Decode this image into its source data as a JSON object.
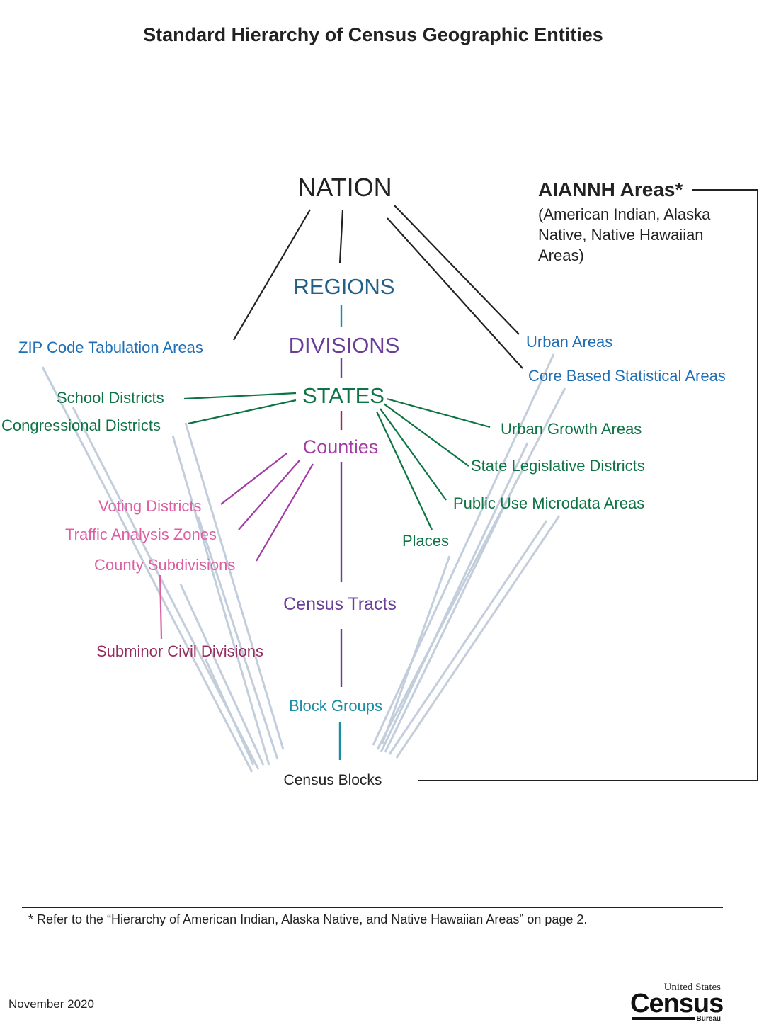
{
  "title": "Standard Hierarchy of Census Geographic Entities",
  "colors": {
    "black": "#222222",
    "blue": "#1f6fb5",
    "darkblue": "#245f87",
    "purple": "#6a3d9a",
    "green": "#0e7445",
    "magenta": "#a33ba5",
    "pink": "#dc5fa2",
    "wine": "#962b5e",
    "teal": "#1a8ea3",
    "lightblue": "#c3cedc"
  },
  "nodes": {
    "nation": "NATION",
    "regions": "REGIONS",
    "divisions": "DIVISIONS",
    "states": "STATES",
    "counties": "Counties",
    "census_tracts": "Census Tracts",
    "block_groups": "Block Groups",
    "census_blocks": "Census Blocks",
    "zcta": "ZIP Code Tabulation Areas",
    "school_districts": "School Districts",
    "congressional_districts": "Congressional Districts",
    "voting_districts": "Voting Districts",
    "traffic_analysis_zones": "Traffic Analysis Zones",
    "county_subdivisions": "County Subdivisions",
    "subminor_civil_divisions": "Subminor Civil Divisions",
    "urban_areas": "Urban Areas",
    "cbsa": "Core Based Statistical Areas",
    "urban_growth_areas": "Urban Growth Areas",
    "state_legislative_districts": "State Legislative Districts",
    "puma": "Public Use Microdata Areas",
    "places": "Places"
  },
  "aiannh": {
    "title": "AIANNH Areas*",
    "desc_lines": [
      "(American Indian, Alaska",
      "Native, Native Hawaiian",
      "Areas)"
    ]
  },
  "footnote": "* Refer to the “Hierarchy of American Indian, Alaska Native, and Native Hawaiian Areas” on page 2.",
  "date": "November 2020",
  "logo": {
    "top": "United States",
    "main": "Census",
    "sub": "Bureau"
  }
}
